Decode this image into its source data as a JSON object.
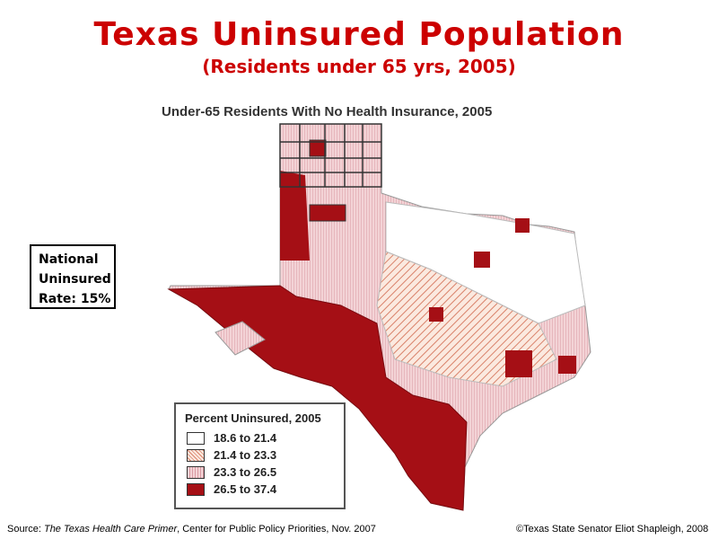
{
  "title": "Texas Uninsured Population",
  "subtitle": "(Residents under 65 yrs, 2005)",
  "map_title": "Under-65 Residents With No Health Insurance, 2005",
  "national_box": [
    "National",
    "Uninsured",
    "Rate: 15%"
  ],
  "legend": {
    "title": "Percent Uninsured, 2005",
    "items": [
      {
        "label": "18.6 to 21.4",
        "color": "#ffffff",
        "pattern": "none"
      },
      {
        "label": "21.4 to 23.3",
        "color": "#f3c9b5",
        "pattern": "diagonal"
      },
      {
        "label": "23.3 to 26.5",
        "color": "#efc3c8",
        "pattern": "vertical"
      },
      {
        "label": "26.5 to 37.4",
        "color": "#a50f15",
        "pattern": "solid"
      }
    ]
  },
  "footer": {
    "source_prefix": "Source: ",
    "source_title": "The Texas Health Care Primer",
    "source_rest": ", Center for Public Policy Priorities, Nov. 2007",
    "copyright": "©Texas State Senator Eliot Shapleigh, 2008"
  },
  "colors": {
    "title": "#cc0000",
    "high": "#a50f15"
  }
}
